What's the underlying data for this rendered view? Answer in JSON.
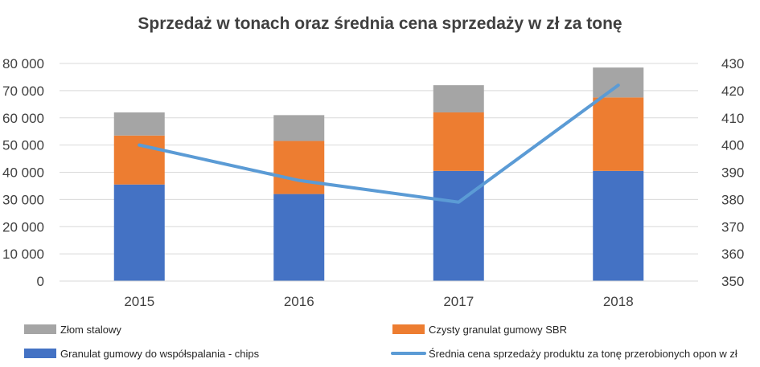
{
  "chart_data": {
    "type": "bar",
    "stacked": true,
    "title": "Sprzedaż w tonach oraz średnia cena sprzedaży w zł za tonę",
    "categories": [
      "2015",
      "2016",
      "2017",
      "2018"
    ],
    "ylim": [
      0,
      80000
    ],
    "y_ticks": [
      "0",
      "10 000",
      "20 000",
      "30 000",
      "40 000",
      "50 000",
      "60 000",
      "70 000",
      "80 000"
    ],
    "y2lim": [
      350,
      430
    ],
    "y2_ticks": [
      "350",
      "360",
      "370",
      "380",
      "390",
      "400",
      "410",
      "420",
      "430"
    ],
    "grid": true,
    "legend_position": "bottom",
    "series": [
      {
        "name": "Granulat gumowy do współspalania - chips",
        "type": "bar",
        "axis": "left",
        "color": "#4472C4",
        "values": [
          35500,
          32000,
          40500,
          40500
        ]
      },
      {
        "name": "Czysty granulat gumowy SBR",
        "type": "bar",
        "axis": "left",
        "color": "#ED7D31",
        "values": [
          18000,
          19500,
          21500,
          27000
        ]
      },
      {
        "name": "Złom stalowy",
        "type": "bar",
        "axis": "left",
        "color": "#A5A5A5",
        "values": [
          8500,
          9500,
          10000,
          11000
        ]
      },
      {
        "name": "Średnia cena sprzedaży produktu za tonę przerobionych opon w zł",
        "type": "line",
        "axis": "right",
        "color": "#5B9BD5",
        "values": [
          400,
          387,
          379,
          422
        ]
      }
    ]
  }
}
